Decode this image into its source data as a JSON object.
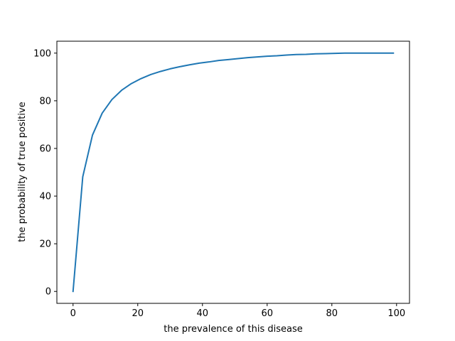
{
  "chart_data": {
    "type": "line",
    "title": "",
    "xlabel": "the prevalence of this disease",
    "ylabel": "the probability of true positive",
    "xlim": [
      -5,
      104
    ],
    "ylim": [
      -5,
      105
    ],
    "xticks": [
      0,
      20,
      40,
      60,
      80,
      100
    ],
    "yticks": [
      0,
      20,
      40,
      60,
      80,
      100
    ],
    "grid": false,
    "series": [
      {
        "color": "#1f77b4",
        "x": [
          0,
          3,
          6,
          9,
          12,
          15,
          18,
          21,
          24,
          27,
          30,
          33,
          36,
          39,
          42,
          45,
          48,
          51,
          54,
          57,
          60,
          63,
          66,
          69,
          72,
          75,
          78,
          81,
          84,
          87,
          90,
          93,
          96,
          99
        ],
        "y": [
          0,
          48.1,
          65.6,
          74.8,
          80.5,
          84.4,
          87.2,
          89.3,
          91.0,
          92.3,
          93.4,
          94.3,
          95.1,
          95.8,
          96.3,
          96.9,
          97.3,
          97.7,
          98.1,
          98.4,
          98.7,
          98.9,
          99.2,
          99.4,
          99.5,
          99.7,
          99.8,
          99.9,
          100.0,
          100.0,
          100.0,
          100.0,
          100.0,
          100.0
        ]
      }
    ]
  }
}
